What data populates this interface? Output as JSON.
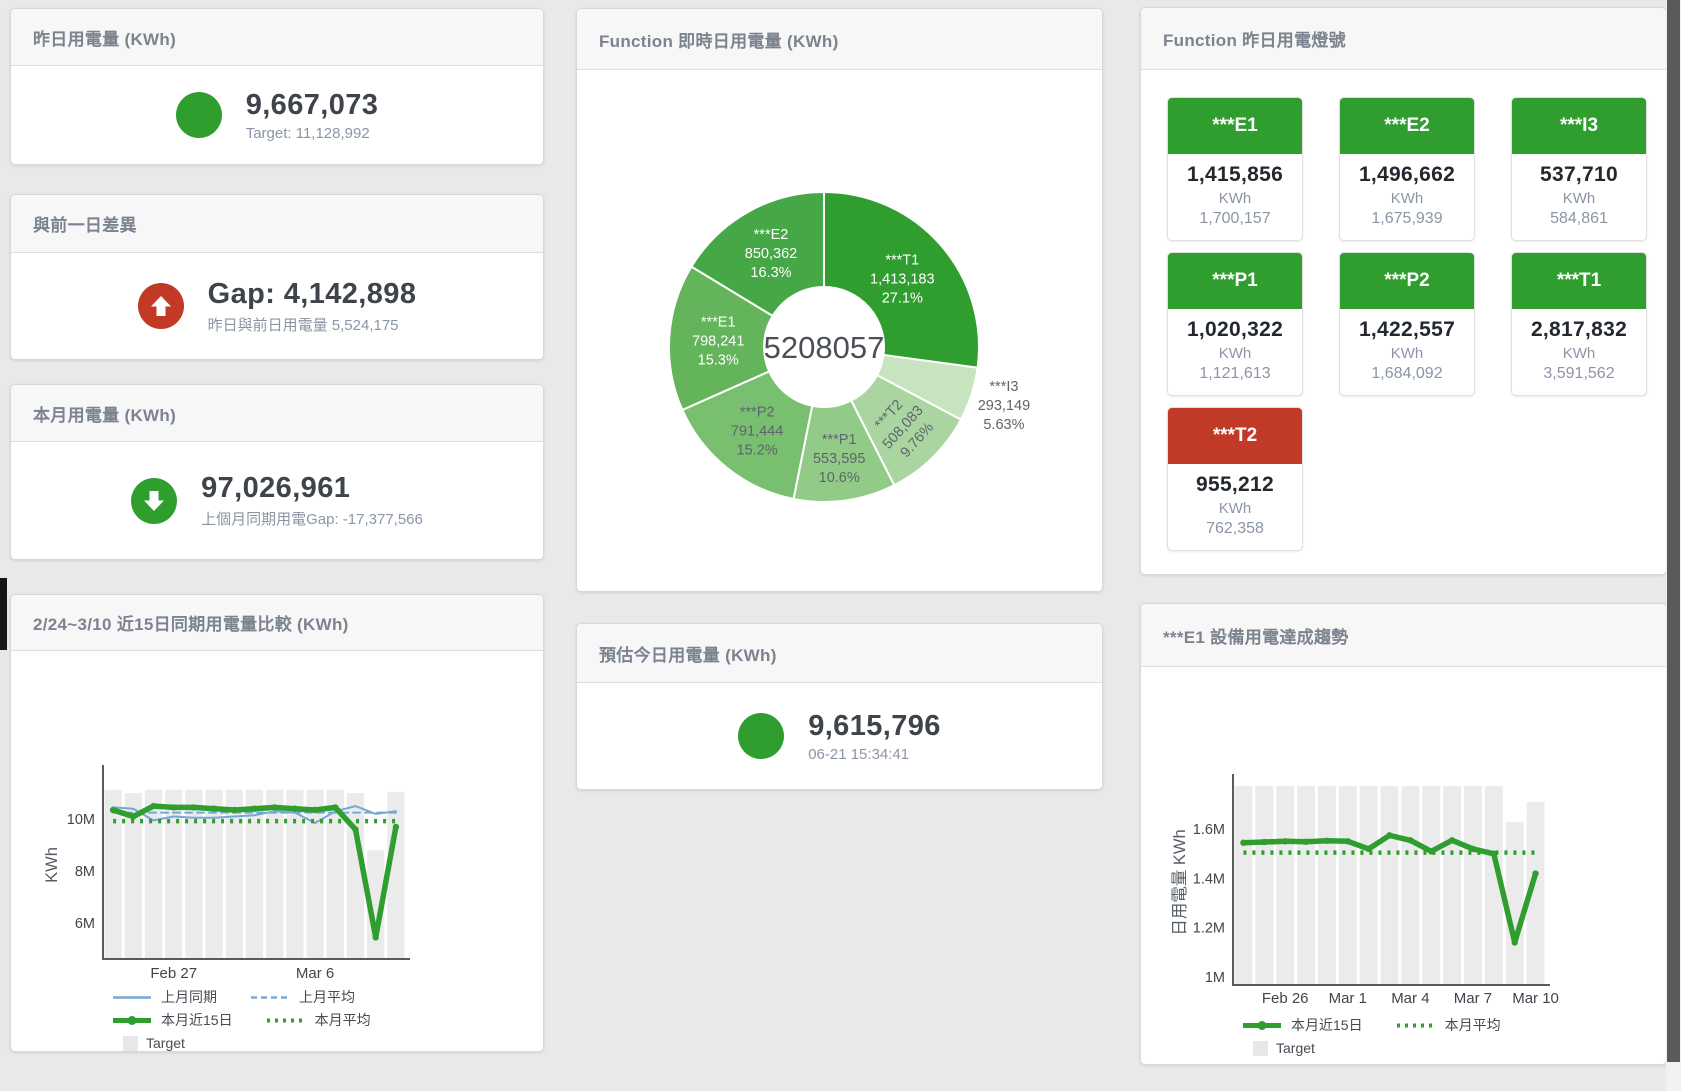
{
  "colors": {
    "green": "#2f9e2f",
    "red": "#c23a26",
    "blue_line": "#75a8d4",
    "green_line": "#2f9e2f",
    "target_bar": "#ebebeb",
    "header_text": "#7b838e",
    "value_text": "#3f444b",
    "subtitle_text": "#8b95a5"
  },
  "cards": {
    "yesterday": {
      "title": "昨日用電量 (KWh)",
      "value": "9,667,073",
      "subtitle": "Target: 11,128,992",
      "indicator": "circle",
      "indicator_color": "green"
    },
    "gap": {
      "title": "與前一日差異",
      "value": "Gap: 4,142,898",
      "subtitle": "昨日與前日用電量 5,524,175",
      "indicator": "arrow-up",
      "indicator_color": "red"
    },
    "month": {
      "title": "本月用電量 (KWh)",
      "value": "97,026,961",
      "subtitle": "上個月同期用電Gap: -17,377,566",
      "indicator": "arrow-down",
      "indicator_color": "green"
    },
    "estimate": {
      "title": "預估今日用電量 (KWh)",
      "value": "9,615,796",
      "subtitle": "06-21 15:34:41",
      "indicator": "circle",
      "indicator_color": "green"
    }
  },
  "status_panel": {
    "title": "Function 昨日用電燈號",
    "unit_label": "KWh",
    "items": [
      {
        "label": "***E1",
        "value": "1,415,856",
        "target": "1,700,157",
        "status": "green"
      },
      {
        "label": "***E2",
        "value": "1,496,662",
        "target": "1,675,939",
        "status": "green"
      },
      {
        "label": "***I3",
        "value": "537,710",
        "target": "584,861",
        "status": "green"
      },
      {
        "label": "***P1",
        "value": "1,020,322",
        "target": "1,121,613",
        "status": "green"
      },
      {
        "label": "***P2",
        "value": "1,422,557",
        "target": "1,684,092",
        "status": "green"
      },
      {
        "label": "***T1",
        "value": "2,817,832",
        "target": "3,591,562",
        "status": "green"
      },
      {
        "label": "***T2",
        "value": "955,212",
        "target": "762,358",
        "status": "red"
      }
    ]
  },
  "chart_data": [
    {
      "type": "pie",
      "title": "Function 即時日用電量 (KWh)",
      "center_label": "5208057",
      "total": 5208057,
      "slices": [
        {
          "name": "***T1",
          "value": 1413183,
          "display_value": "1,413,183",
          "pct": "27.1%",
          "color": "#2f9e2f",
          "label_color": "#ffffff",
          "label_r": 104,
          "rotate": 0
        },
        {
          "name": "***I3",
          "value": 293149,
          "display_value": "293,149",
          "pct": "5.63%",
          "color": "#c8e3c0",
          "label_color": "#5d656c",
          "label_r": 189,
          "rotate": 0
        },
        {
          "name": "***T2",
          "value": 508083,
          "display_value": "508,083",
          "pct": "9.76%",
          "color": "#abd5a0",
          "label_color": "#5d656c",
          "label_r": 112,
          "rotate": -48
        },
        {
          "name": "***P1",
          "value": 553595,
          "display_value": "553,595",
          "pct": "10.6%",
          "color": "#92ca88",
          "label_color": "#5d656c",
          "label_r": 112,
          "rotate": 0
        },
        {
          "name": "***P2",
          "value": 791444,
          "display_value": "791,444",
          "pct": "15.2%",
          "color": "#79bf70",
          "label_color": "#5d656c",
          "label_r": 107,
          "rotate": 0
        },
        {
          "name": "***E1",
          "value": 798241,
          "display_value": "798,241",
          "pct": "15.3%",
          "color": "#63b45b",
          "label_color": "#ffffff",
          "label_r": 106,
          "rotate": 0
        },
        {
          "name": "***E2",
          "value": 850362,
          "display_value": "850,362",
          "pct": "16.3%",
          "color": "#46a746",
          "label_color": "#ffffff",
          "label_r": 108,
          "rotate": 0
        }
      ]
    },
    {
      "type": "line",
      "title": "2/24~3/10 近15日同期用電量比較 (KWh)",
      "ylabel": "KWh",
      "x_count": 15,
      "ymin": 4.62,
      "ymax": 11.85,
      "grid": false,
      "yticks": [
        {
          "v": 6,
          "label": "6M"
        },
        {
          "v": 8,
          "label": "8M"
        },
        {
          "v": 10,
          "label": "10M"
        }
      ],
      "xticks": [
        {
          "i": 3,
          "label": "Feb 27"
        },
        {
          "i": 10,
          "label": "Mar 6"
        }
      ],
      "target_values": [
        11.13,
        11.0,
        11.13,
        11.13,
        11.13,
        11.13,
        11.13,
        11.13,
        11.13,
        11.13,
        11.13,
        11.13,
        11.0,
        8.8,
        11.05
      ],
      "series": [
        {
          "name": "上月同期",
          "style": "solid",
          "color": "#75a8d4",
          "width": 2,
          "values": [
            10.45,
            10.4,
            9.95,
            10.1,
            10.05,
            10.05,
            10.1,
            10.15,
            10.3,
            10.25,
            9.85,
            10.3,
            10.5,
            10.2,
            10.3
          ]
        },
        {
          "name": "上月平均",
          "style": "dashed",
          "color": "#75a8d4",
          "width": 2,
          "values": 10.25
        },
        {
          "name": "本月近15日",
          "style": "solid",
          "color": "#2f9e2f",
          "width": 5.5,
          "values": [
            10.35,
            10.1,
            10.5,
            10.45,
            10.45,
            10.4,
            10.35,
            10.4,
            10.45,
            10.4,
            10.35,
            10.45,
            9.6,
            5.45,
            9.7
          ]
        },
        {
          "name": "本月平均",
          "style": "dotted",
          "color": "#2f9e2f",
          "width": 4.5,
          "values": 9.92
        }
      ],
      "legend_rows": [
        [
          {
            "label": "上月同期",
            "swatch": "solid",
            "color": "#75a8d4"
          },
          {
            "label": "上月平均",
            "swatch": "dashed",
            "color": "#75a8d4"
          }
        ],
        [
          {
            "label": "本月近15日",
            "swatch": "thick",
            "color": "#2f9e2f"
          },
          {
            "label": "本月平均",
            "swatch": "dotted",
            "color": "#2f9e2f"
          }
        ],
        [
          {
            "label": "Target",
            "swatch": "box",
            "color": "#e7e7e7"
          }
        ]
      ]
    },
    {
      "type": "line",
      "title": "***E1 設備用電達成趨勢",
      "ylabel": "日用電量 KWh",
      "x_count": 15,
      "ymin": 0.967,
      "ymax": 1.8,
      "grid": false,
      "yticks": [
        {
          "v": 1,
          "label": "1M"
        },
        {
          "v": 1.2,
          "label": "1.2M"
        },
        {
          "v": 1.4,
          "label": "1.4M"
        },
        {
          "v": 1.6,
          "label": "1.6M"
        }
      ],
      "xticks": [
        {
          "i": 2,
          "label": "Feb 26"
        },
        {
          "i": 5,
          "label": "Mar 1"
        },
        {
          "i": 8,
          "label": "Mar 4"
        },
        {
          "i": 11,
          "label": "Mar 7"
        },
        {
          "i": 14,
          "label": "Mar 10"
        }
      ],
      "target_values": [
        1.775,
        1.775,
        1.775,
        1.775,
        1.775,
        1.775,
        1.775,
        1.775,
        1.775,
        1.775,
        1.775,
        1.775,
        1.775,
        1.63,
        1.71
      ],
      "series": [
        {
          "name": "本月近15日",
          "style": "solid",
          "color": "#2f9e2f",
          "width": 5.5,
          "values": [
            1.545,
            1.548,
            1.551,
            1.549,
            1.553,
            1.551,
            1.52,
            1.575,
            1.555,
            1.51,
            1.555,
            1.52,
            1.5,
            1.14,
            1.42
          ]
        },
        {
          "name": "本月平均",
          "style": "dotted",
          "color": "#2f9e2f",
          "width": 4.5,
          "values": 1.505
        }
      ],
      "legend_rows": [
        [
          {
            "label": "本月近15日",
            "swatch": "thick",
            "color": "#2f9e2f"
          },
          {
            "label": "本月平均",
            "swatch": "dotted",
            "color": "#2f9e2f"
          }
        ],
        [
          {
            "label": "Target",
            "swatch": "box",
            "color": "#e7e7e7"
          }
        ]
      ]
    }
  ]
}
